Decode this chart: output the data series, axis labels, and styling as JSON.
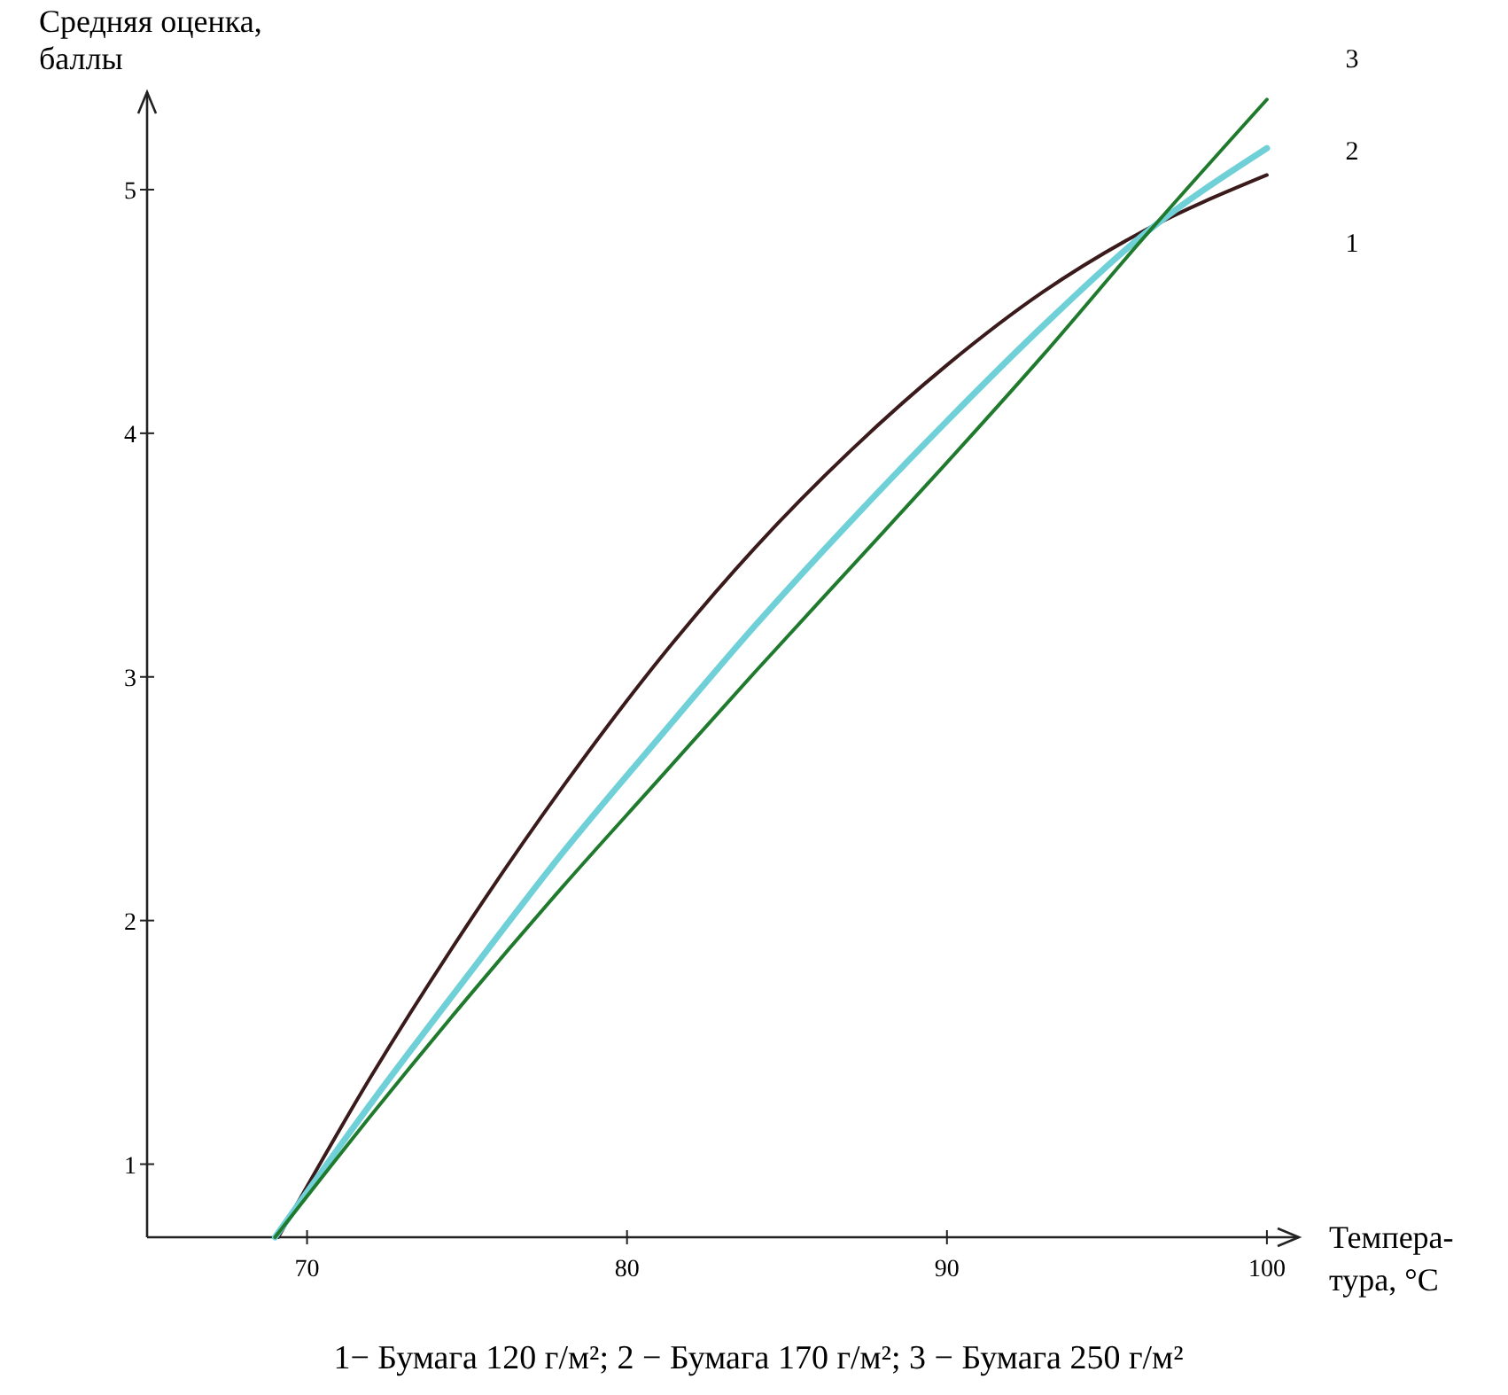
{
  "chart_data": {
    "type": "line",
    "ylabel": "Средняя оценка,\nбаллы",
    "xlabel": "Темпера-\nтура, °С",
    "xlim": [
      65,
      101
    ],
    "xticks": [
      70,
      80,
      90,
      100
    ],
    "ylim": [
      0.7,
      5.4
    ],
    "yticks": [
      1,
      2,
      3,
      4,
      5
    ],
    "grid": false,
    "marker": "none",
    "line_style": "solid",
    "series": [
      {
        "name": "1",
        "color": "#3a1a1a",
        "x": [
          69.1,
          72,
          75,
          78,
          81,
          84,
          87,
          90,
          93,
          96,
          100
        ],
        "values": [
          0.7,
          1.36,
          1.98,
          2.55,
          3.07,
          3.53,
          3.93,
          4.28,
          4.58,
          4.82,
          5.06
        ]
      },
      {
        "name": "2",
        "color": "#6fd0d8",
        "x": [
          69.0,
          72,
          75,
          78,
          81,
          84,
          87,
          90,
          93,
          96,
          100
        ],
        "values": [
          0.7,
          1.25,
          1.77,
          2.28,
          2.75,
          3.21,
          3.64,
          4.05,
          4.44,
          4.8,
          5.17
        ]
      },
      {
        "name": "3",
        "color": "#1f7a2e",
        "x": [
          69.0,
          72,
          75,
          78,
          81,
          84,
          87,
          90,
          93,
          96,
          100
        ],
        "values": [
          0.7,
          1.2,
          1.68,
          2.14,
          2.58,
          3.02,
          3.45,
          3.88,
          4.32,
          4.78,
          5.37
        ]
      }
    ],
    "annotations": [
      "1− Бумага 120 г/м²; 2 −  Бумага 170 г/м²; 3 −  Бумага 250 г/м²"
    ]
  }
}
